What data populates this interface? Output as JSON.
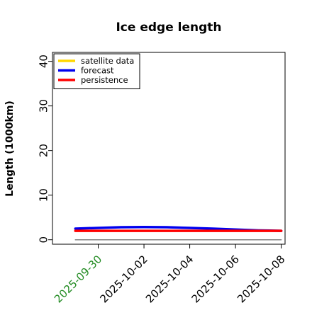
{
  "chart_data": {
    "type": "line",
    "title": "Ice edge length",
    "xlabel": "",
    "ylabel": "Length (1000km)",
    "ylim": [
      -1,
      42
    ],
    "xlim": [
      "2025-09-28",
      "2025-10-08T04:00"
    ],
    "yticks": [
      0,
      10,
      20,
      30,
      40
    ],
    "xticks": [
      {
        "label": "2025-09-30",
        "value": "2025-09-30",
        "color": "#228b22"
      },
      {
        "label": "2025-10-02",
        "value": "2025-10-02",
        "color": "#000000"
      },
      {
        "label": "2025-10-04",
        "value": "2025-10-04",
        "color": "#000000"
      },
      {
        "label": "2025-10-06",
        "value": "2025-10-06",
        "color": "#000000"
      },
      {
        "label": "2025-10-08",
        "value": "2025-10-08",
        "color": "#000000"
      }
    ],
    "grid": false,
    "legend": "top-left",
    "series": [
      {
        "name": "satellite data",
        "color": "#ffd700",
        "x": [],
        "y": []
      },
      {
        "name": "forecast",
        "color": "#0000ee",
        "x": [
          "2025-09-29",
          "2025-09-30",
          "2025-10-01",
          "2025-10-02",
          "2025-10-03",
          "2025-10-04",
          "2025-10-05",
          "2025-10-06",
          "2025-10-07",
          "2025-10-08"
        ],
        "y": [
          2.5,
          2.65,
          2.8,
          2.85,
          2.8,
          2.65,
          2.5,
          2.3,
          2.1,
          2.0
        ]
      },
      {
        "name": "persistence",
        "color": "#ff0000",
        "x": [
          "2025-09-29",
          "2025-10-08"
        ],
        "y": [
          2.0,
          2.0
        ]
      },
      {
        "name": "",
        "color": "#808080",
        "x": [
          "2025-09-29",
          "2025-10-08"
        ],
        "y": [
          0,
          0
        ]
      }
    ]
  }
}
